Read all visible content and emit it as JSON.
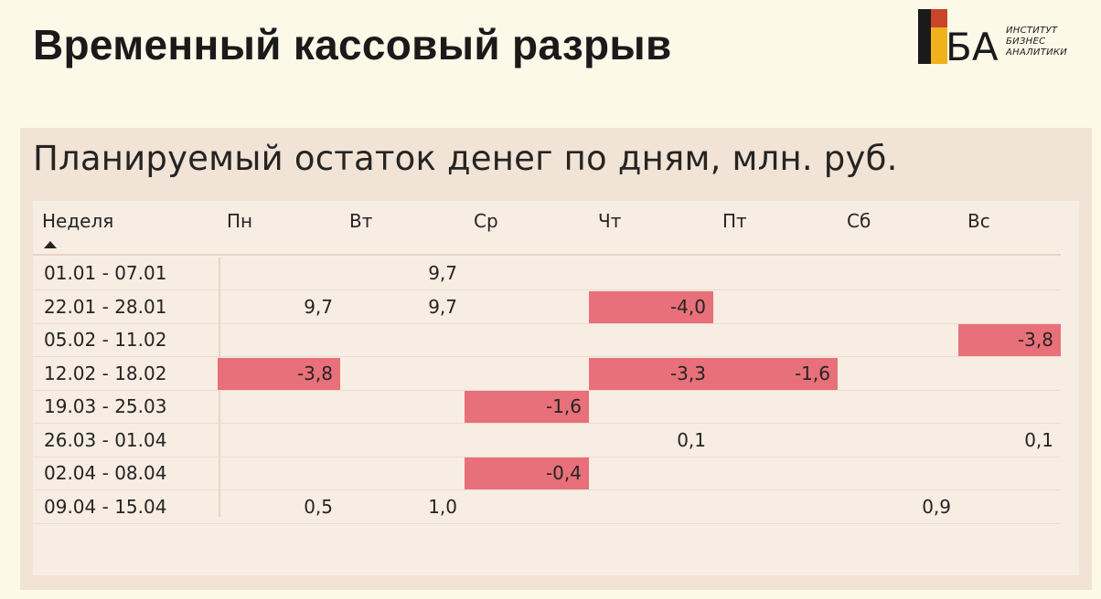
{
  "slide": {
    "title": "Временный кассовый разрыв"
  },
  "logo": {
    "letters": "БА",
    "text_lines": [
      "ИНСТИТУТ",
      "БИЗНЕС",
      "АНАЛИТИКИ"
    ]
  },
  "colors": {
    "negative_fill": "#e8707a",
    "background": "#fcf9e8",
    "panel": "#f1e3d5"
  },
  "table": {
    "title": "Планируемый остаток денег по дням, млн. руб.",
    "columns": [
      "Неделя",
      "Пн",
      "Вт",
      "Ср",
      "Чт",
      "Пт",
      "Сб",
      "Вс"
    ],
    "sort": "ascending",
    "rows": [
      {
        "week": "01.01 - 07.01",
        "cells": [
          "",
          "9,7",
          "",
          "",
          "",
          "",
          ""
        ],
        "neg": [
          false,
          false,
          false,
          false,
          false,
          false,
          false
        ]
      },
      {
        "week": "22.01 - 28.01",
        "cells": [
          "9,7",
          "9,7",
          "",
          "-4,0",
          "",
          "",
          ""
        ],
        "neg": [
          false,
          false,
          false,
          true,
          false,
          false,
          false
        ]
      },
      {
        "week": "05.02 - 11.02",
        "cells": [
          "",
          "",
          "",
          "",
          "",
          "",
          "-3,8"
        ],
        "neg": [
          false,
          false,
          false,
          false,
          false,
          false,
          true
        ]
      },
      {
        "week": "12.02 - 18.02",
        "cells": [
          "-3,8",
          "",
          "",
          "-3,3",
          "-1,6",
          "",
          ""
        ],
        "neg": [
          true,
          false,
          false,
          true,
          true,
          false,
          false
        ]
      },
      {
        "week": "19.03 - 25.03",
        "cells": [
          "",
          "",
          "-1,6",
          "",
          "",
          "",
          ""
        ],
        "neg": [
          false,
          false,
          true,
          false,
          false,
          false,
          false
        ]
      },
      {
        "week": "26.03 - 01.04",
        "cells": [
          "",
          "",
          "",
          "0,1",
          "",
          "",
          "0,1"
        ],
        "neg": [
          false,
          false,
          false,
          false,
          false,
          false,
          false
        ]
      },
      {
        "week": "02.04 - 08.04",
        "cells": [
          "",
          "",
          "-0,4",
          "",
          "",
          "",
          ""
        ],
        "neg": [
          false,
          false,
          true,
          false,
          false,
          false,
          false
        ]
      },
      {
        "week": "09.04 - 15.04",
        "cells": [
          "0,5",
          "1,0",
          "",
          "",
          "",
          "0,9",
          ""
        ],
        "neg": [
          false,
          false,
          false,
          false,
          false,
          false,
          false
        ]
      }
    ]
  }
}
